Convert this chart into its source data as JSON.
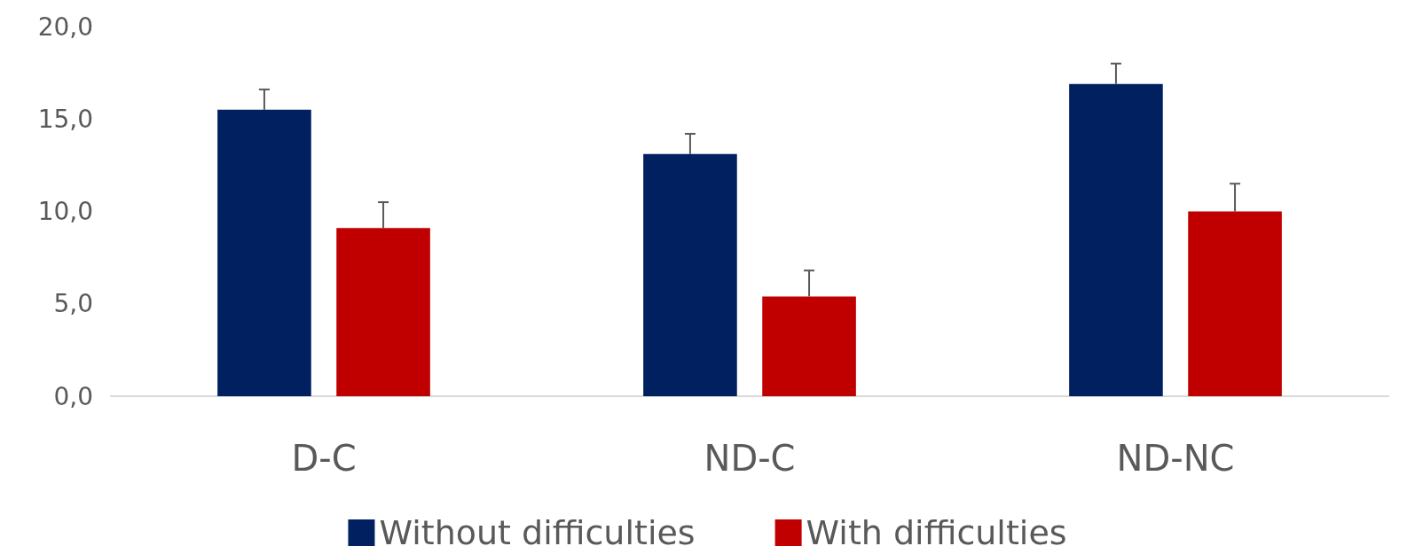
{
  "chart_data": {
    "type": "bar",
    "categories": [
      "D-C",
      "ND-C",
      "ND-NC"
    ],
    "series": [
      {
        "name": "Without difficulties",
        "color": "#002060",
        "values": [
          15.5,
          13.1,
          16.9
        ],
        "errors": [
          [
            15.5,
            16.6
          ],
          [
            13.1,
            14.2
          ],
          [
            16.9,
            18.0
          ]
        ]
      },
      {
        "name": "With difficulties",
        "color": "#c00000",
        "values": [
          9.1,
          5.4,
          10.0
        ],
        "errors": [
          [
            9.1,
            10.5
          ],
          [
            5.4,
            6.8
          ],
          [
            10.0,
            11.5
          ]
        ]
      }
    ],
    "ylim": [
      0,
      20
    ],
    "yticks": [
      {
        "value": 0,
        "label": "0,0"
      },
      {
        "value": 5,
        "label": "5,0"
      },
      {
        "value": 10,
        "label": "10,0"
      },
      {
        "value": 15,
        "label": "15,0"
      },
      {
        "value": 20,
        "label": "20,0"
      }
    ],
    "grid": false,
    "legend": "bottom"
  }
}
